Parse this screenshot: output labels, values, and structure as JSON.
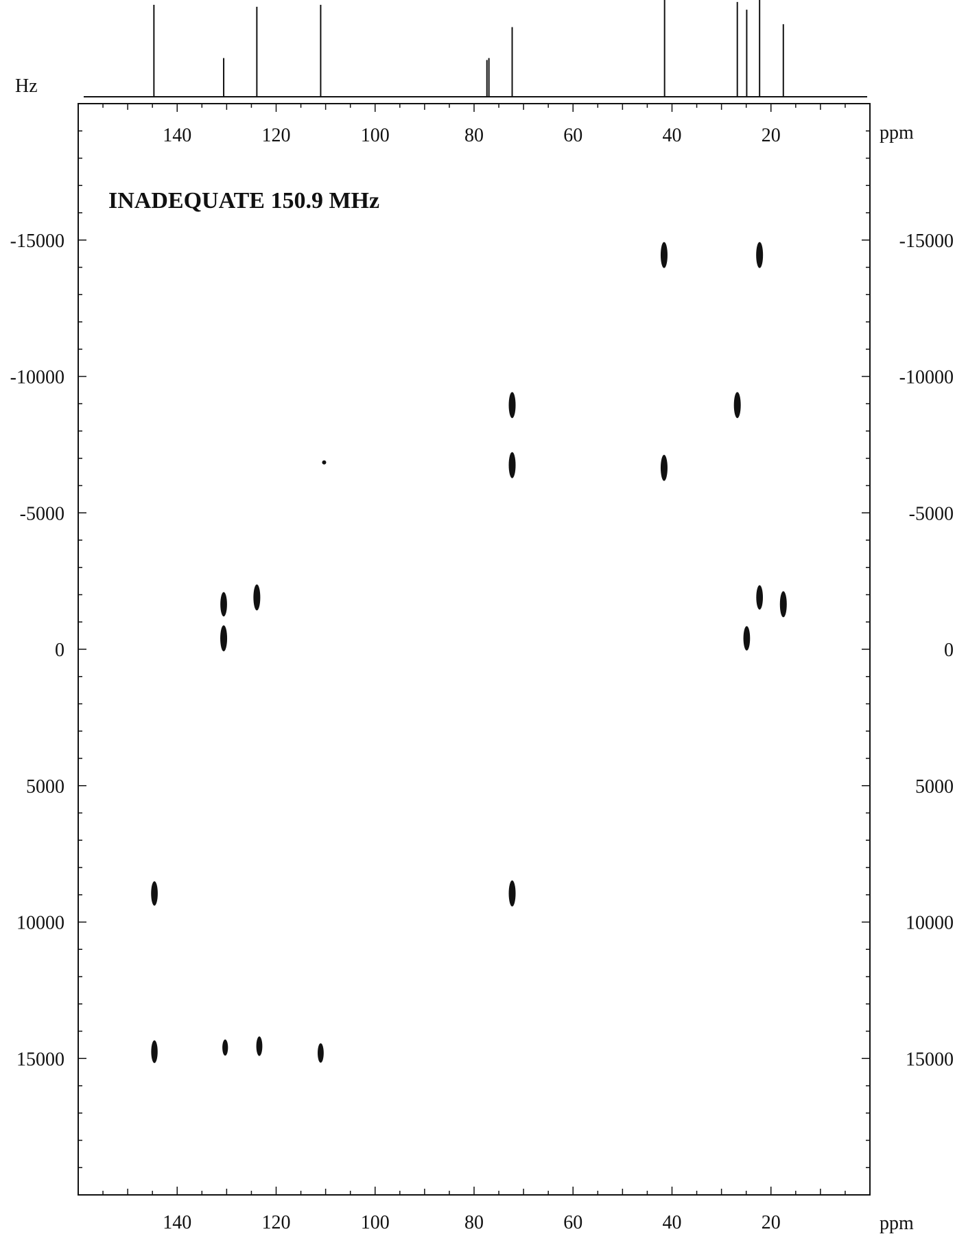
{
  "chart_data": {
    "type": "scatter",
    "title": "INADEQUATE 150.9 MHz",
    "xlabel": "ppm",
    "ylabel": "Hz",
    "xlim": [
      160,
      0
    ],
    "ylim": [
      -20000,
      20000
    ],
    "x_ticks": [
      140,
      120,
      100,
      80,
      60,
      40,
      20
    ],
    "y_ticks": [
      -15000,
      -10000,
      -5000,
      0,
      5000,
      10000,
      15000
    ],
    "grid": false,
    "projection_peaks": [
      {
        "ppm": 144.7,
        "height": 0.95
      },
      {
        "ppm": 130.6,
        "height": 0.4
      },
      {
        "ppm": 123.9,
        "height": 0.93
      },
      {
        "ppm": 111.0,
        "height": 0.95
      },
      {
        "ppm": 77.4,
        "height": 0.38
      },
      {
        "ppm": 77.0,
        "height": 0.4
      },
      {
        "ppm": 72.3,
        "height": 0.72
      },
      {
        "ppm": 41.5,
        "height": 1.0
      },
      {
        "ppm": 26.8,
        "height": 0.98
      },
      {
        "ppm": 24.9,
        "height": 0.9
      },
      {
        "ppm": 22.3,
        "height": 1.0
      },
      {
        "ppm": 17.5,
        "height": 0.75
      }
    ],
    "cross_peaks": [
      {
        "ppm": 41.6,
        "hz": -14450,
        "size": 1.0
      },
      {
        "ppm": 22.3,
        "hz": -14450,
        "size": 1.0
      },
      {
        "ppm": 72.3,
        "hz": -8950,
        "size": 1.0
      },
      {
        "ppm": 26.8,
        "hz": -8950,
        "size": 1.0
      },
      {
        "ppm": 110.3,
        "hz": -6850,
        "size": 0.15
      },
      {
        "ppm": 72.3,
        "hz": -6750,
        "size": 1.0
      },
      {
        "ppm": 41.6,
        "hz": -6650,
        "size": 1.0
      },
      {
        "ppm": 123.9,
        "hz": -1900,
        "size": 1.0
      },
      {
        "ppm": 22.3,
        "hz": -1900,
        "size": 0.9
      },
      {
        "ppm": 130.6,
        "hz": -1650,
        "size": 0.9
      },
      {
        "ppm": 17.5,
        "hz": -1650,
        "size": 1.0
      },
      {
        "ppm": 130.6,
        "hz": -400,
        "size": 1.0
      },
      {
        "ppm": 24.9,
        "hz": -400,
        "size": 0.9
      },
      {
        "ppm": 144.6,
        "hz": 8950,
        "size": 0.9
      },
      {
        "ppm": 72.3,
        "hz": 8950,
        "size": 1.0
      },
      {
        "ppm": 144.6,
        "hz": 14750,
        "size": 0.8
      },
      {
        "ppm": 130.3,
        "hz": 14600,
        "size": 0.4
      },
      {
        "ppm": 123.4,
        "hz": 14550,
        "size": 0.6
      },
      {
        "ppm": 111.0,
        "hz": 14800,
        "size": 0.6
      }
    ]
  }
}
